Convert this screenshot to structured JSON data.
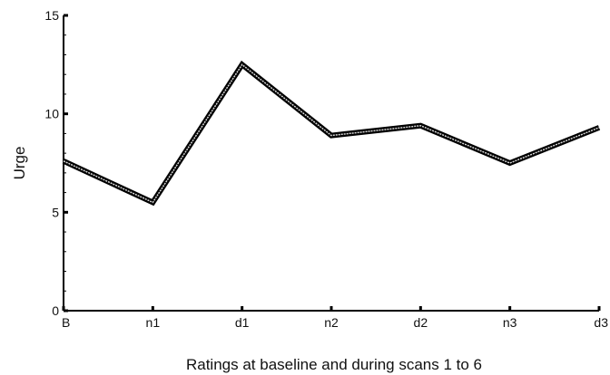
{
  "chart_data": {
    "type": "line",
    "title": "",
    "xlabel": "Ratings at baseline and during scans 1 to 6",
    "ylabel": "Urge",
    "categories": [
      "B",
      "n1",
      "d1",
      "n2",
      "d2",
      "n3",
      "d3"
    ],
    "ylim": [
      0,
      15
    ],
    "yticks": [
      0,
      5,
      10,
      15
    ],
    "grid": false,
    "series": [
      {
        "values": [
          7.6,
          5.5,
          12.5,
          8.9,
          9.4,
          7.5,
          9.3
        ]
      }
    ]
  }
}
